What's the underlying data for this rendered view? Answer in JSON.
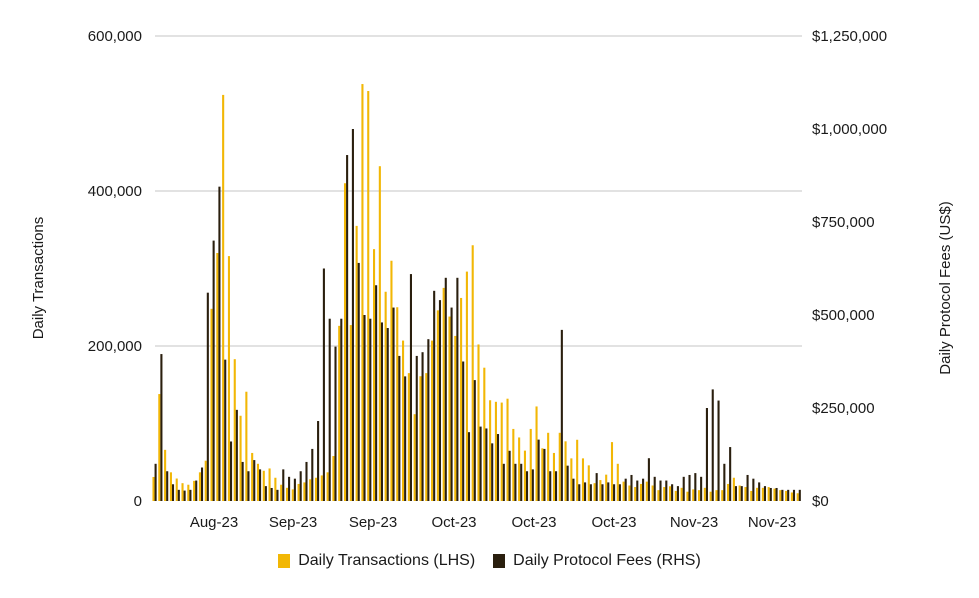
{
  "chart_data": {
    "type": "bar",
    "title": "",
    "xlabel": "",
    "ylabel": "Daily Transactions",
    "ylabel_right": "Daily Protocol Fees (US$)",
    "ylim": [
      0,
      600000
    ],
    "ylim_right": [
      0,
      1250000
    ],
    "grid": true,
    "legend_position": "bottom",
    "x_tick_labels": [
      "Aug-23",
      "Sep-23",
      "Sep-23",
      "Oct-23",
      "Oct-23",
      "Oct-23",
      "Nov-23",
      "Nov-23"
    ],
    "y_tick_labels": [
      "0",
      "200,000",
      "400,000",
      "600,000"
    ],
    "y_right_tick_labels": [
      "$0",
      "$250,000",
      "$500,000",
      "$750,000",
      "$1,000,000",
      "$1,250,000"
    ],
    "series": [
      {
        "name": "Daily Transactions (LHS)",
        "axis": "left",
        "color": "#F2B705",
        "values": [
          31000,
          138000,
          66000,
          37000,
          29000,
          23000,
          21000,
          26000,
          37000,
          52000,
          248000,
          320000,
          524000,
          316000,
          183000,
          110000,
          141000,
          62000,
          48000,
          39000,
          42000,
          30000,
          21000,
          17000,
          15000,
          22000,
          24000,
          28000,
          30000,
          33000,
          37000,
          58000,
          226000,
          410000,
          227000,
          355000,
          538000,
          529000,
          325000,
          432000,
          270000,
          310000,
          250000,
          207000,
          165000,
          112000,
          161000,
          165000,
          207000,
          246000,
          275000,
          238000,
          213000,
          262000,
          296000,
          330000,
          202000,
          172000,
          130000,
          128000,
          127000,
          132000,
          93000,
          82000,
          65000,
          93000,
          122000,
          68000,
          88000,
          62000,
          88000,
          77000,
          55000,
          79000,
          55000,
          46000,
          23000,
          27000,
          34000,
          76000,
          48000,
          25000,
          20000,
          18000,
          22000,
          25000,
          20000,
          14000,
          18000,
          19000,
          13000,
          17000,
          12000,
          15000,
          14000,
          17000,
          12000,
          14000,
          14000,
          22000,
          30000,
          20000,
          18000,
          13000,
          17000,
          17000,
          18000,
          16000,
          14000,
          13000,
          11000,
          10000
        ],
        "title": "Daily Transactions (LHS)"
      },
      {
        "name": "Daily Protocol Fees (RHS)",
        "axis": "right",
        "color": "#2A1F0E",
        "values": [
          100000,
          395000,
          80000,
          45000,
          30000,
          28000,
          30000,
          55000,
          90000,
          560000,
          700000,
          845000,
          380000,
          160000,
          245000,
          105000,
          80000,
          110000,
          85000,
          40000,
          35000,
          30000,
          85000,
          65000,
          60000,
          80000,
          105000,
          140000,
          215000,
          625000,
          490000,
          415000,
          490000,
          930000,
          1000000,
          640000,
          500000,
          490000,
          580000,
          480000,
          465000,
          520000,
          390000,
          335000,
          610000,
          390000,
          400000,
          435000,
          565000,
          540000,
          600000,
          520000,
          600000,
          375000,
          185000,
          325000,
          200000,
          195000,
          155000,
          180000,
          100000,
          135000,
          100000,
          100000,
          80000,
          85000,
          165000,
          140000,
          80000,
          80000,
          460000,
          95000,
          60000,
          45000,
          50000,
          45000,
          75000,
          45000,
          50000,
          45000,
          45000,
          60000,
          70000,
          55000,
          60000,
          115000,
          65000,
          55000,
          55000,
          45000,
          40000,
          65000,
          70000,
          75000,
          65000,
          250000,
          300000,
          270000,
          100000,
          145000,
          40000,
          40000,
          70000,
          60000,
          50000,
          40000,
          35000,
          35000,
          30000,
          30000,
          30000,
          30000
        ],
        "title": "Daily Protocol Fees (RHS)"
      }
    ]
  },
  "legend": {
    "items": [
      {
        "label": "Daily Transactions (LHS)",
        "color": "#F2B705"
      },
      {
        "label": "Daily Protocol Fees (RHS)",
        "color": "#2A1F0E"
      }
    ]
  },
  "colors": {
    "grid": "#D0D0D0",
    "text": "#1a1a1a"
  }
}
